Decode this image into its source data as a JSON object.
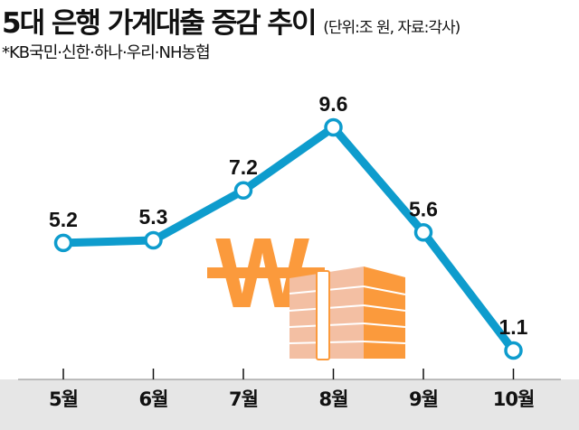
{
  "chart_data": {
    "type": "line",
    "title": "5대 은행 가계대출 증감 추이",
    "unit_note": "(단위:조 원, 자료:각사)",
    "subtitle": "*KB국민·신한·하나·우리·NH농협",
    "categories": [
      "5월",
      "6월",
      "7월",
      "8월",
      "9월",
      "10월"
    ],
    "values": [
      5.2,
      5.3,
      7.2,
      9.6,
      5.6,
      1.1
    ],
    "value_labels": [
      "5.2",
      "5.3",
      "7.2",
      "9.6",
      "5.6",
      "1.1"
    ],
    "xlabel": "",
    "ylabel": "",
    "ylim": [
      0,
      9.6
    ],
    "grid": false,
    "colors": {
      "line": "#0e9ccd",
      "axis_band": "#e6e6e6",
      "illustration": "#fb9a3c"
    }
  }
}
